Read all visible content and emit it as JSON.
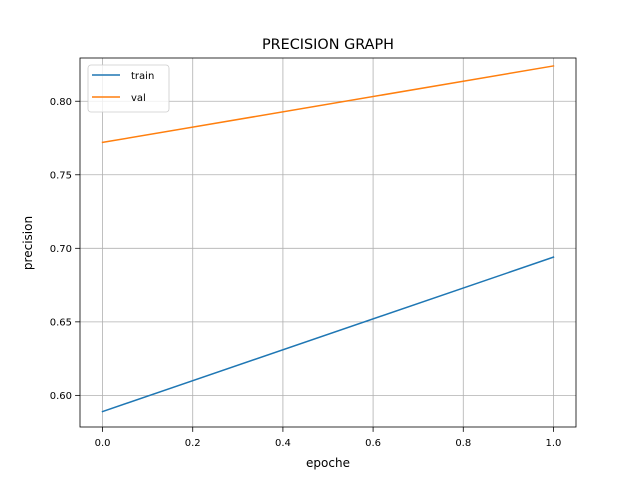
{
  "chart_data": {
    "type": "line",
    "title": "PRECISION GRAPH",
    "xlabel": "epoche",
    "ylabel": "precision",
    "xlim": [
      -0.05,
      1.05
    ],
    "ylim": [
      0.5785,
      0.8294
    ],
    "x_ticks": [
      0.0,
      0.2,
      0.4,
      0.6,
      0.8,
      1.0
    ],
    "x_tick_labels": [
      "0.0",
      "0.2",
      "0.4",
      "0.6",
      "0.8",
      "1.0"
    ],
    "y_ticks": [
      0.6,
      0.65,
      0.7,
      0.75,
      0.8
    ],
    "y_tick_labels": [
      "0.60",
      "0.65",
      "0.70",
      "0.75",
      "0.80"
    ],
    "grid": true,
    "legend_position": "upper-left",
    "series": [
      {
        "name": "train",
        "color": "#1f77b4",
        "x": [
          0,
          1
        ],
        "values": [
          0.589,
          0.694
        ]
      },
      {
        "name": "val",
        "color": "#ff7f0e",
        "x": [
          0,
          1
        ],
        "values": [
          0.772,
          0.824
        ]
      }
    ]
  }
}
